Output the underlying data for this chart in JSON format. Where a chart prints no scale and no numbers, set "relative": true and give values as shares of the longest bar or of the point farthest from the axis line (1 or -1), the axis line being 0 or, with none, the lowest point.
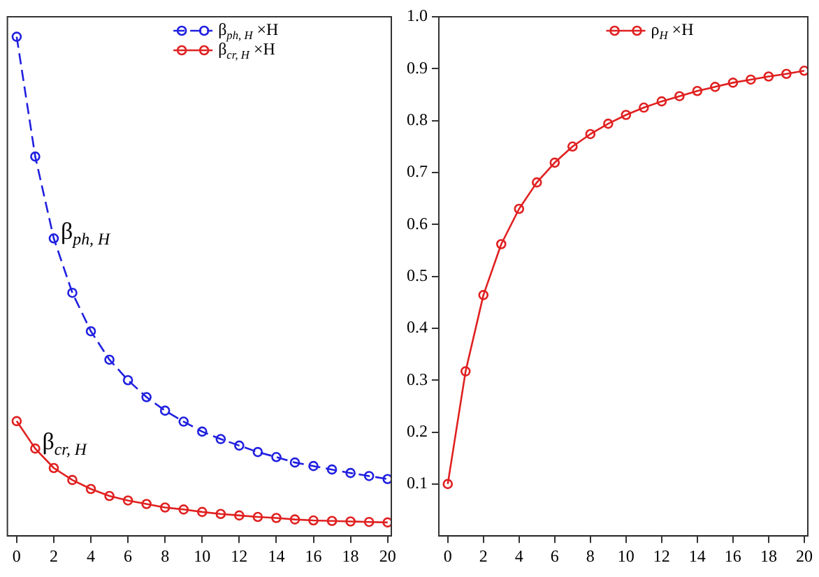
{
  "chart_data": [
    {
      "type": "line",
      "relative": true,
      "x": [
        0,
        1,
        2,
        3,
        4,
        5,
        6,
        7,
        8,
        9,
        10,
        11,
        12,
        13,
        14,
        15,
        16,
        17,
        18,
        19,
        20
      ],
      "xlim": [
        -0.5,
        20.2
      ],
      "xticks": [
        0,
        2,
        4,
        6,
        8,
        10,
        12,
        14,
        16,
        18,
        20
      ],
      "legend": "top",
      "marker": "circle",
      "grid": false,
      "series": [
        {
          "name": "β$_{ph, H}$ ×H",
          "color": "#2020e0",
          "line_style": "dashed",
          "values": [
            1.0,
            0.76,
            0.596,
            0.487,
            0.41,
            0.353,
            0.312,
            0.278,
            0.251,
            0.229,
            0.209,
            0.194,
            0.181,
            0.168,
            0.158,
            0.147,
            0.14,
            0.133,
            0.126,
            0.12,
            0.114
          ]
        },
        {
          "name": "β$_{cr, H}$ ×H",
          "color": "#e02020",
          "line_style": "solid",
          "values": [
            0.23,
            0.175,
            0.136,
            0.112,
            0.094,
            0.08,
            0.071,
            0.064,
            0.057,
            0.053,
            0.048,
            0.044,
            0.041,
            0.038,
            0.036,
            0.033,
            0.031,
            0.03,
            0.029,
            0.028,
            0.027
          ]
        }
      ],
      "annotations": [
        {
          "text": "β$_{ph, H}$",
          "x": 2,
          "y": 0.596
        },
        {
          "text": "β$_{cr, H}$",
          "x": 1,
          "y": 0.175
        }
      ]
    },
    {
      "type": "line",
      "x": [
        0,
        1,
        2,
        3,
        4,
        5,
        6,
        7,
        8,
        9,
        10,
        11,
        12,
        13,
        14,
        15,
        16,
        17,
        18,
        19,
        20
      ],
      "xlim": [
        -0.5,
        20.2
      ],
      "xticks": [
        0,
        2,
        4,
        6,
        8,
        10,
        12,
        14,
        16,
        18,
        20
      ],
      "ylim": [
        0,
        1.0
      ],
      "yticks": [
        {
          "value": 0.1,
          "label": "0.1"
        },
        {
          "value": 0.2,
          "label": "0.2"
        },
        {
          "value": 0.3,
          "label": "0.3"
        },
        {
          "value": 0.4,
          "label": "0.4"
        },
        {
          "value": 0.5,
          "label": "0.5"
        },
        {
          "value": 0.6,
          "label": "0.6"
        },
        {
          "value": 0.7,
          "label": "0.7"
        },
        {
          "value": 0.8,
          "label": "0.8"
        },
        {
          "value": 0.9,
          "label": "0.9"
        },
        {
          "value": 1.0,
          "label": "1.0"
        }
      ],
      "legend": "top",
      "marker": "circle",
      "grid": false,
      "series": [
        {
          "name": "ρ$_{H}$ ×H",
          "color": "#e02020",
          "line_style": "solid",
          "values": [
            0.1,
            0.317,
            0.464,
            0.562,
            0.63,
            0.681,
            0.719,
            0.75,
            0.774,
            0.794,
            0.811,
            0.825,
            0.837,
            0.847,
            0.857,
            0.865,
            0.873,
            0.879,
            0.885,
            0.89,
            0.896
          ]
        }
      ]
    }
  ]
}
